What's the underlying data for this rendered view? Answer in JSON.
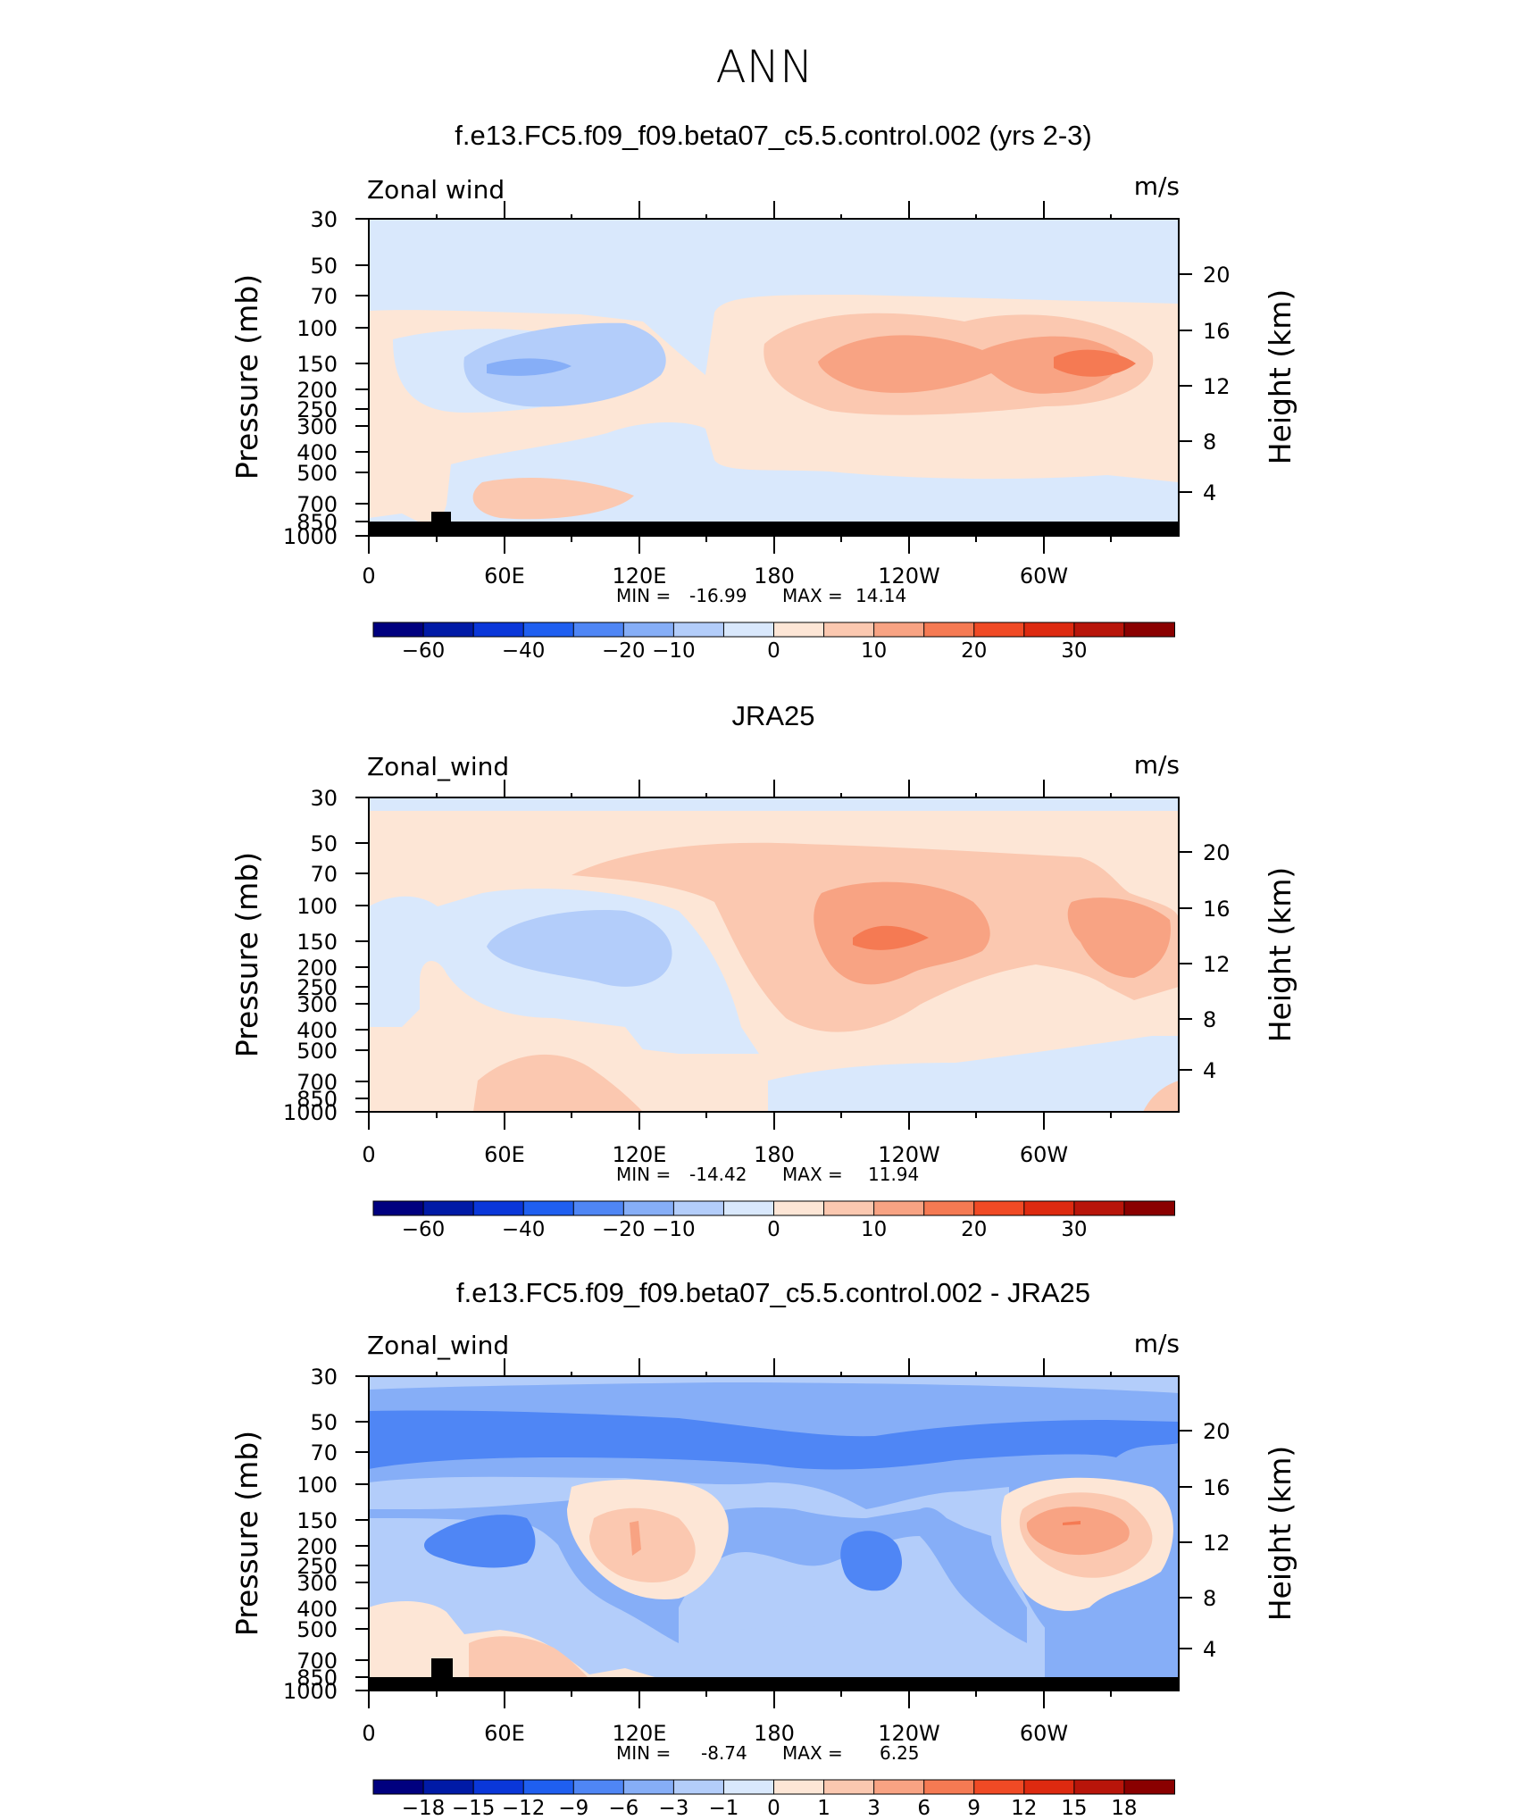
{
  "figure_title": "ANN",
  "chart_data": [
    {
      "type": "contour",
      "title": "f.e13.FC5.f09_f09.beta07_c5.5.control.002 (yrs 2-3)",
      "field_label": "Zonal wind",
      "units": "m/s",
      "ylabel": "Pressure (mb)",
      "ylabel_right": "Height (km)",
      "x_ticks": [
        "0",
        "60E",
        "120E",
        "180",
        "120W",
        "60W"
      ],
      "y_ticks": [
        "30",
        "50",
        "70",
        "100",
        "150",
        "200",
        "250",
        "300",
        "400",
        "500",
        "700",
        "850",
        "1000"
      ],
      "y_ticks_right": [
        "20",
        "16",
        "12",
        "8",
        "4"
      ],
      "min_label": "MIN =",
      "min": "-16.99",
      "max_label": "MAX =",
      "max": "14.14",
      "colorbar_ticks": [
        "−60",
        "−40",
        "−20",
        "−10",
        "0",
        "10",
        "20",
        "30"
      ],
      "colorbar_colors": [
        "#00007f",
        "#001aa6",
        "#0a37d9",
        "#1f5ff0",
        "#4f86f5",
        "#86aef7",
        "#b3cdfa",
        "#d9e8fc",
        "#fde6d6",
        "#fbc8b0",
        "#f8a383",
        "#f57a53",
        "#f04a25",
        "#dd2a10",
        "#b8150a",
        "#8a0000"
      ]
    },
    {
      "type": "contour",
      "title": "JRA25",
      "field_label": "Zonal_wind",
      "units": "m/s",
      "ylabel": "Pressure (mb)",
      "ylabel_right": "Height (km)",
      "x_ticks": [
        "0",
        "60E",
        "120E",
        "180",
        "120W",
        "60W"
      ],
      "y_ticks": [
        "30",
        "50",
        "70",
        "100",
        "150",
        "200",
        "250",
        "300",
        "400",
        "500",
        "700",
        "850",
        "1000"
      ],
      "y_ticks_right": [
        "20",
        "16",
        "12",
        "8",
        "4"
      ],
      "min_label": "MIN =",
      "min": "-14.42",
      "max_label": "MAX =",
      "max": "11.94",
      "colorbar_ticks": [
        "−60",
        "−40",
        "−20",
        "−10",
        "0",
        "10",
        "20",
        "30"
      ],
      "colorbar_colors": [
        "#00007f",
        "#001aa6",
        "#0a37d9",
        "#1f5ff0",
        "#4f86f5",
        "#86aef7",
        "#b3cdfa",
        "#d9e8fc",
        "#fde6d6",
        "#fbc8b0",
        "#f8a383",
        "#f57a53",
        "#f04a25",
        "#dd2a10",
        "#b8150a",
        "#8a0000"
      ]
    },
    {
      "type": "contour",
      "title": "f.e13.FC5.f09_f09.beta07_c5.5.control.002 - JRA25",
      "field_label": "Zonal_wind",
      "units": "m/s",
      "ylabel": "Pressure (mb)",
      "ylabel_right": "Height (km)",
      "x_ticks": [
        "0",
        "60E",
        "120E",
        "180",
        "120W",
        "60W"
      ],
      "y_ticks": [
        "30",
        "50",
        "70",
        "100",
        "150",
        "200",
        "250",
        "300",
        "400",
        "500",
        "700",
        "850",
        "1000"
      ],
      "y_ticks_right": [
        "20",
        "16",
        "12",
        "8",
        "4"
      ],
      "min_label": "MIN =",
      "min": "-8.74",
      "max_label": "MAX =",
      "max": "6.25",
      "colorbar_ticks": [
        "−18",
        "−15",
        "−12",
        "−9",
        "−6",
        "−3",
        "−1",
        "0",
        "1",
        "3",
        "6",
        "9",
        "12",
        "15",
        "18"
      ],
      "colorbar_colors": [
        "#00007f",
        "#001aa6",
        "#0a37d9",
        "#1f5ff0",
        "#4f86f5",
        "#86aef7",
        "#b3cdfa",
        "#d9e8fc",
        "#fde6d6",
        "#fbc8b0",
        "#f8a383",
        "#f57a53",
        "#f04a25",
        "#dd2a10",
        "#b8150a",
        "#8a0000"
      ]
    }
  ]
}
